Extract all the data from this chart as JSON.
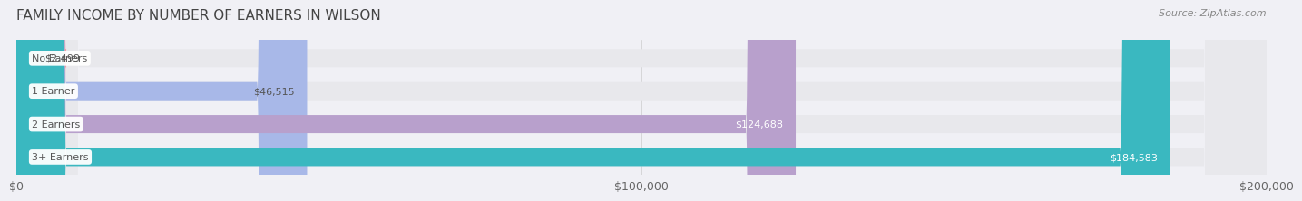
{
  "title": "FAMILY INCOME BY NUMBER OF EARNERS IN WILSON",
  "source": "Source: ZipAtlas.com",
  "categories": [
    "No Earners",
    "1 Earner",
    "2 Earners",
    "3+ Earners"
  ],
  "values": [
    2499,
    46515,
    124688,
    184583
  ],
  "value_labels": [
    "$2,499",
    "$46,515",
    "$124,688",
    "$184,583"
  ],
  "bar_colors": [
    "#f4a0a0",
    "#a8b8e8",
    "#b8a0cc",
    "#3ab8c0"
  ],
  "bar_bg_color": "#e8e8ec",
  "label_bg_color": "#ffffff",
  "label_text_color_dark": "#555555",
  "label_text_color_light": "#ffffff",
  "title_color": "#444444",
  "source_color": "#888888",
  "xlim": [
    0,
    200000
  ],
  "xticks": [
    0,
    100000,
    200000
  ],
  "xtick_labels": [
    "$0",
    "$100,000",
    "$200,000"
  ],
  "background_color": "#f0f0f5",
  "bar_height": 0.55,
  "title_fontsize": 11,
  "source_fontsize": 8,
  "tick_fontsize": 9,
  "label_fontsize": 8,
  "category_fontsize": 8
}
